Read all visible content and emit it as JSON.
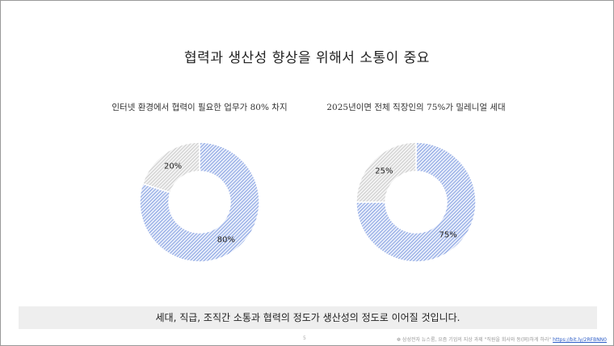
{
  "slide": {
    "title": "협력과 생산성 향상을 위해서 소통이 중요",
    "footer_text": "세대, 직급, 조직간 소통과 협력의 정도가 생산성의 정도로 이어질 것입니다.",
    "page_number": "5",
    "source_text": "❁ 삼성전자 뉴스룸, 요즘 기업의 지상 과제 \"직원을 회사와 동(同)하게 하라\"",
    "source_link": "https://bit.ly/2RFBNN0"
  },
  "colors": {
    "major_stripe": "#5b7fd6",
    "minor_stripe": "#b8b8b8",
    "footer_bg": "#eeeeee",
    "link": "#2b5cc7"
  },
  "chart_data": [
    {
      "type": "pie",
      "donut": true,
      "title": "인터넷 환경에서 협력이 필요한 업무가 80% 차지",
      "values": [
        80,
        20
      ],
      "labels": [
        "80%",
        "20%"
      ]
    },
    {
      "type": "pie",
      "donut": true,
      "title": "2025년이면 전체 직장인의 75%가 밀레니얼 세대",
      "values": [
        75,
        25
      ],
      "labels": [
        "75%",
        "25%"
      ]
    }
  ]
}
